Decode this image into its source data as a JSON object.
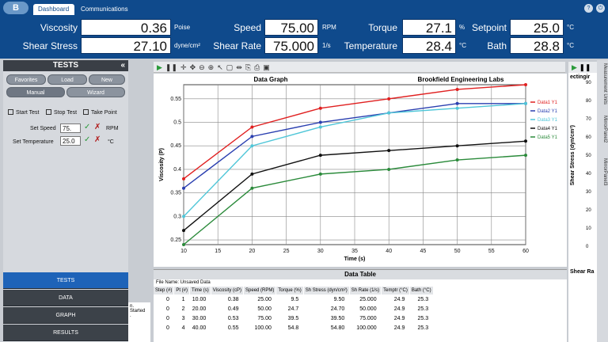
{
  "tabs": {
    "dashboard": "Dashboard",
    "communications": "Communications"
  },
  "readings": {
    "viscosity": {
      "label": "Viscosity",
      "value": "0.36",
      "unit": "Poise"
    },
    "speed": {
      "label": "Speed",
      "value": "75.00",
      "unit": "RPM"
    },
    "torque": {
      "label": "Torque",
      "value": "27.1",
      "unit": "%"
    },
    "setpoint": {
      "label": "Setpoint",
      "value": "25.0",
      "unit": "°C"
    },
    "shear_stress": {
      "label": "Shear Stress",
      "value": "27.10",
      "unit": "dyne/cm²"
    },
    "shear_rate": {
      "label": "Shear Rate",
      "value": "75.000",
      "unit": "1/s"
    },
    "temperature": {
      "label": "Temperature",
      "value": "28.4",
      "unit": "°C"
    },
    "bath": {
      "label": "Bath",
      "value": "28.8",
      "unit": "°C"
    }
  },
  "left": {
    "title": "TESTS",
    "buttons": [
      "Favorites",
      "Load",
      "New",
      "Manual",
      "Wizard"
    ],
    "start": "Start Test",
    "stop": "Stop Test",
    "take": "Take Point",
    "set_speed_label": "Set Speed",
    "set_speed_value": "75.",
    "set_speed_unit": "RPM",
    "set_temp_label": "Set Temperature",
    "set_temp_value": "25.0",
    "set_temp_unit": "°C",
    "nav": [
      "TESTS",
      "DATA",
      "GRAPH",
      "RESULTS"
    ]
  },
  "log": [
    "n.",
    "Started",
    "."
  ],
  "chart_data": {
    "type": "line",
    "title": "Data Graph",
    "subtitle": "Brookfield Engineering Labs",
    "xlabel": "Time (s)",
    "ylabel": "Viscosity (P)",
    "xlim": [
      10,
      60
    ],
    "ylim": [
      0.24,
      0.58
    ],
    "xticks": [
      10,
      15,
      20,
      25,
      30,
      35,
      40,
      45,
      50,
      55,
      60
    ],
    "yticks": [
      0.25,
      0.3,
      0.35,
      0.4,
      0.45,
      0.5,
      0.55
    ],
    "grid": true,
    "legend": "right",
    "x": [
      10,
      20,
      30,
      40,
      50,
      60
    ],
    "series": [
      {
        "name": "Data1 Y1",
        "color": "#e02020",
        "values": [
          0.38,
          0.49,
          0.53,
          0.55,
          0.57,
          0.58
        ]
      },
      {
        "name": "Data2 Y1",
        "color": "#2a3fb0",
        "values": [
          0.36,
          0.47,
          0.5,
          0.52,
          0.54,
          0.54
        ]
      },
      {
        "name": "Data3 Y1",
        "color": "#4fc6d8",
        "values": [
          0.3,
          0.45,
          0.49,
          0.52,
          0.53,
          0.54
        ]
      },
      {
        "name": "Data4 Y1",
        "color": "#111111",
        "values": [
          0.27,
          0.39,
          0.43,
          0.44,
          0.45,
          0.46
        ]
      },
      {
        "name": "Data5 Y1",
        "color": "#2a8a3a",
        "values": [
          0.24,
          0.36,
          0.39,
          0.4,
          0.42,
          0.43
        ]
      }
    ]
  },
  "right_axis": {
    "title": "Shear Stress (dyn/cm²)",
    "label_top": "ectingir",
    "label_bottom": "Shear Ra",
    "ticks": [
      "90",
      "80",
      "70",
      "60",
      "50",
      "40",
      "30",
      "20",
      "10",
      "0"
    ]
  },
  "right_tabs": [
    "Measurement Units",
    "MirrorPanel2",
    "MirrorPanel3"
  ],
  "table": {
    "title": "Data Table",
    "file_name": "File Name: Unsaved Data",
    "headers": [
      "Step (#)",
      "Pt (#)",
      "Time (s)",
      "Viscosity (cP)",
      "Speed (RPM)",
      "Torque (%)",
      "Sh Stress (dyn/cm²)",
      "Sh Rate (1/s)",
      "Temptr (°C)",
      "Bath (°C)"
    ],
    "rows": [
      [
        "0",
        "1",
        "10.00",
        "0.38",
        "25.00",
        "9.5",
        "9.50",
        "25.000",
        "24.9",
        "25.3"
      ],
      [
        "0",
        "2",
        "20.00",
        "0.49",
        "50.00",
        "24.7",
        "24.70",
        "50.000",
        "24.9",
        "25.3"
      ],
      [
        "0",
        "3",
        "30.00",
        "0.53",
        "75.00",
        "39.5",
        "39.50",
        "75.000",
        "24.9",
        "25.3"
      ],
      [
        "0",
        "4",
        "40.00",
        "0.55",
        "100.00",
        "54.8",
        "54.80",
        "100.000",
        "24.9",
        "25.3"
      ]
    ]
  }
}
